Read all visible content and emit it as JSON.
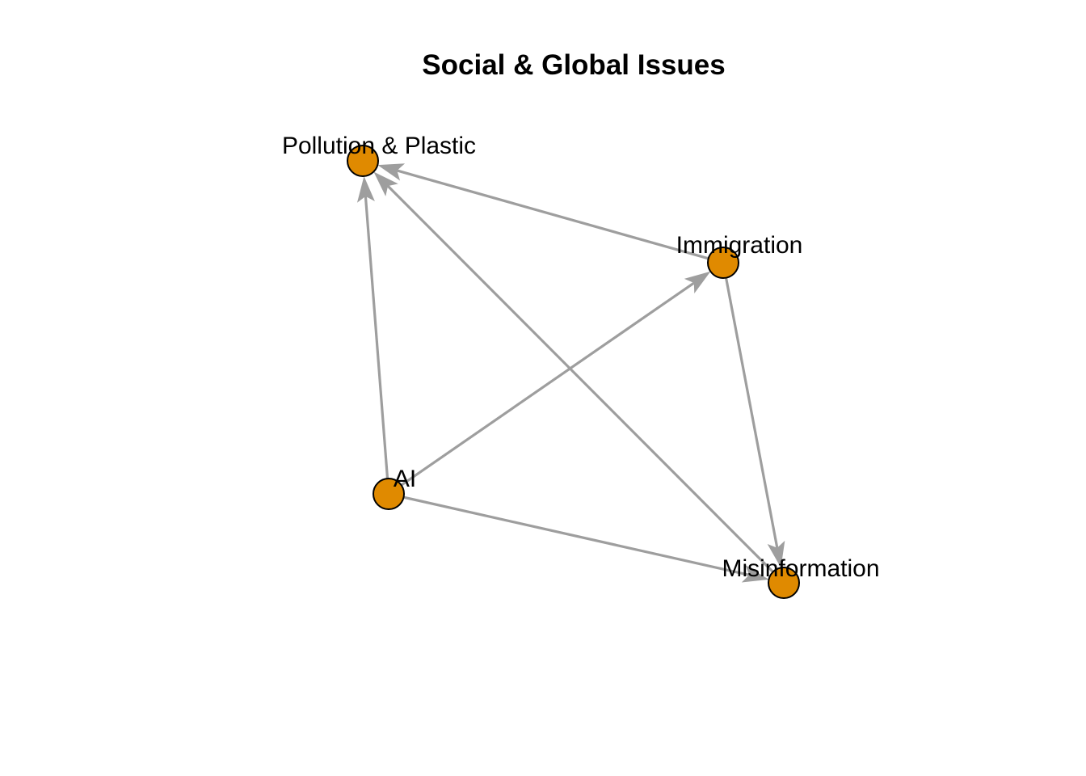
{
  "title": "Social & Global Issues",
  "colors": {
    "node_fill": "#E08A00",
    "node_stroke": "#000000",
    "edge": "#9E9E9E",
    "background": "#FFFFFF"
  },
  "nodes": [
    {
      "id": "pollution",
      "label": "Pollution & Plastic"
    },
    {
      "id": "immigration",
      "label": "Immigration"
    },
    {
      "id": "ai",
      "label": "AI"
    },
    {
      "id": "misinformation",
      "label": "Misinformation"
    }
  ],
  "edges": [
    {
      "from": "immigration",
      "to": "pollution"
    },
    {
      "from": "ai",
      "to": "pollution"
    },
    {
      "from": "misinformation",
      "to": "pollution"
    },
    {
      "from": "ai",
      "to": "immigration"
    },
    {
      "from": "immigration",
      "to": "misinformation"
    },
    {
      "from": "ai",
      "to": "misinformation"
    }
  ]
}
